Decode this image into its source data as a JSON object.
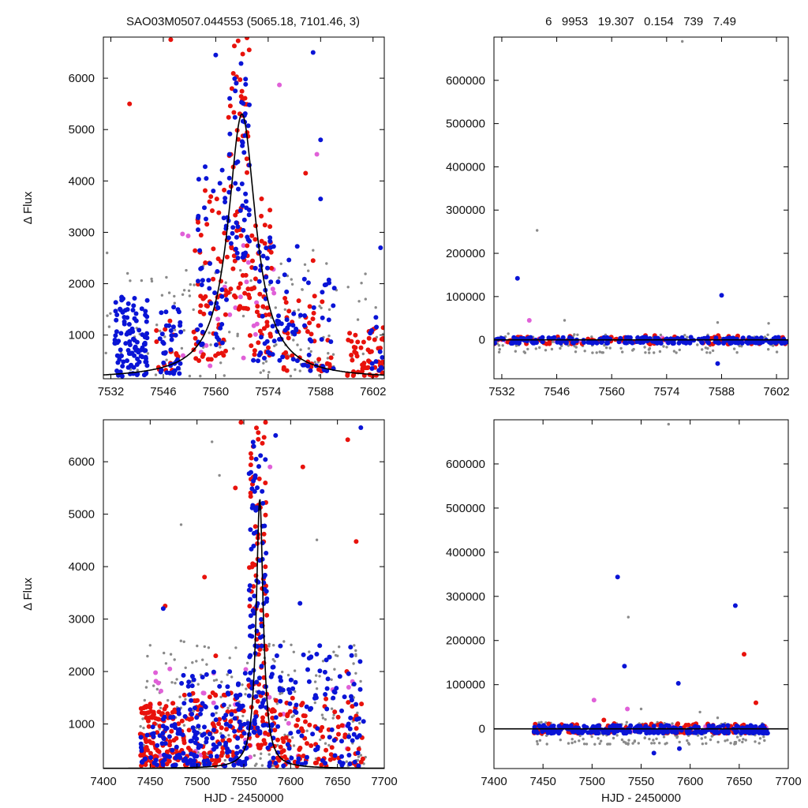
{
  "header": {
    "left_title": "SAO03M0507.044553 (5065.18, 7101.46,    3)",
    "right_stats": "6   9953   19.307   0.154   739   7.49"
  },
  "colors": {
    "red": "#e8120c",
    "blue": "#0a14d6",
    "magenta": "#e060d8",
    "gray": "#8a8a8a",
    "model": "#000000"
  },
  "chart_data": [
    {
      "panel": "top-left",
      "type": "scatter",
      "title": "",
      "xlabel": "",
      "ylabel": "Δ Flux",
      "xlim": [
        7530,
        7605
      ],
      "ylim": [
        150,
        6800
      ],
      "xticks": [
        7532,
        7546,
        7560,
        7574,
        7588,
        7602
      ],
      "yticks": [
        1000,
        2000,
        3000,
        4000,
        5000,
        6000
      ],
      "model": {
        "peak_x": 7567.0,
        "peak_y": 5300,
        "baseline": 150,
        "tau": 4.5
      },
      "series": [
        {
          "color": "red",
          "dense_groups": [
            {
              "x": [
                7532,
                7540
              ],
              "y": [
                300,
                1100
              ],
              "n": 0
            },
            {
              "x": [
                7544,
                7550
              ],
              "y": [
                300,
                1300
              ],
              "n": 15
            },
            {
              "x": [
                7554,
                7563
              ],
              "y": [
                500,
                4000
              ],
              "n": 60
            },
            {
              "x": [
                7563,
                7569
              ],
              "y": [
                1500,
                6800
              ],
              "n": 70
            },
            {
              "x": [
                7569,
                7575
              ],
              "y": [
                600,
                3800
              ],
              "n": 50
            },
            {
              "x": [
                7578,
                7592
              ],
              "y": [
                300,
                1900
              ],
              "n": 45
            },
            {
              "x": [
                7595,
                7605
              ],
              "y": [
                200,
                1200
              ],
              "n": 60
            }
          ],
          "outliers": [
            [
              7537,
              5500
            ],
            [
              7548,
              6750
            ],
            [
              7584,
              4150
            ],
            [
              7586,
              2450
            ]
          ]
        },
        {
          "color": "blue",
          "dense_groups": [
            {
              "x": [
                7533,
                7542
              ],
              "y": [
                200,
                1800
              ],
              "n": 110
            },
            {
              "x": [
                7545,
                7551
              ],
              "y": [
                250,
                1600
              ],
              "n": 40
            },
            {
              "x": [
                7555,
                7563
              ],
              "y": [
                800,
                4300
              ],
              "n": 50
            },
            {
              "x": [
                7563,
                7569
              ],
              "y": [
                2500,
                6500
              ],
              "n": 60
            },
            {
              "x": [
                7570,
                7582
              ],
              "y": [
                500,
                3200
              ],
              "n": 60
            },
            {
              "x": [
                7582,
                7592
              ],
              "y": [
                300,
                2100
              ],
              "n": 30
            },
            {
              "x": [
                7601,
                7605
              ],
              "y": [
                300,
                1400
              ],
              "n": 12
            }
          ],
          "outliers": [
            [
              7560,
              6450
            ],
            [
              7586,
              6500
            ],
            [
              7588,
              4800
            ],
            [
              7588,
              3650
            ],
            [
              7604,
              2700
            ]
          ]
        },
        {
          "color": "magenta",
          "dense_groups": [
            {
              "x": [
                7550,
                7576
              ],
              "y": [
                400,
                3000
              ],
              "n": 25
            }
          ],
          "outliers": [
            [
              7577,
              5870
            ],
            [
              7587,
              4520
            ]
          ]
        },
        {
          "color": "gray",
          "dense_groups": [
            {
              "x": [
                7530,
                7605
              ],
              "y": [
                200,
                2400
              ],
              "n": 140
            }
          ],
          "outliers": [
            [
              7531,
              2600
            ],
            [
              7586,
              2650
            ],
            [
              7600,
              1700
            ]
          ]
        }
      ]
    },
    {
      "panel": "top-right",
      "type": "scatter",
      "title": "",
      "xlabel": "",
      "ylabel": "",
      "xlim": [
        7530,
        7605
      ],
      "ylim": [
        -90000,
        700000
      ],
      "xticks": [
        7532,
        7546,
        7560,
        7574,
        7588,
        7602
      ],
      "yticks": [
        0,
        100000,
        200000,
        300000,
        400000,
        500000,
        600000
      ],
      "model": {
        "type": "flat",
        "y": 0
      },
      "series": [
        {
          "color": "blue",
          "dense_groups": [
            {
              "x": [
                7530,
                7605
              ],
              "y": [
                -8000,
                6000
              ],
              "n": 220
            }
          ],
          "outliers": [
            [
              7536,
              142000
            ],
            [
              7588,
              103000
            ],
            [
              7587,
              -55000
            ]
          ]
        },
        {
          "color": "red",
          "dense_groups": [
            {
              "x": [
                7530,
                7605
              ],
              "y": [
                -10000,
                10000
              ],
              "n": 90
            }
          ],
          "outliers": []
        },
        {
          "color": "magenta",
          "dense_groups": [
            {
              "x": [
                7530,
                7605
              ],
              "y": [
                -5000,
                5000
              ],
              "n": 20
            }
          ],
          "outliers": [
            [
              7539,
              45000
            ]
          ]
        },
        {
          "color": "gray",
          "dense_groups": [
            {
              "x": [
                7530,
                7605
              ],
              "y": [
                -30000,
                15000
              ],
              "n": 120
            }
          ],
          "outliers": [
            [
              7541,
              253000
            ],
            [
              7548,
              45000
            ],
            [
              7578,
              690000
            ],
            [
              7587,
              40000
            ],
            [
              7600,
              38000
            ]
          ]
        }
      ]
    },
    {
      "panel": "bottom-left",
      "type": "scatter",
      "title": "",
      "xlabel": "HJD - 2450000",
      "ylabel": "Δ Flux",
      "xlim": [
        7400,
        7700
      ],
      "ylim": [
        150,
        6800
      ],
      "xticks": [
        7400,
        7450,
        7500,
        7550,
        7600,
        7650,
        7700
      ],
      "yticks": [
        1000,
        2000,
        3000,
        4000,
        5000,
        6000
      ],
      "model": {
        "peak_x": 7567.0,
        "peak_y": 5300,
        "baseline": 150,
        "tau": 4.5
      },
      "series": [
        {
          "color": "red",
          "dense_groups": [
            {
              "x": [
                7438,
                7480
              ],
              "y": [
                200,
                1400
              ],
              "n": 120
            },
            {
              "x": [
                7480,
                7550
              ],
              "y": [
                200,
                1600
              ],
              "n": 110
            },
            {
              "x": [
                7555,
                7575
              ],
              "y": [
                500,
                6800
              ],
              "n": 90
            },
            {
              "x": [
                7575,
                7678
              ],
              "y": [
                200,
                1500
              ],
              "n": 110
            }
          ],
          "outliers": [
            [
              7466,
              3250
            ],
            [
              7508,
              3800
            ],
            [
              7541,
              5500
            ],
            [
              7547,
              6750
            ],
            [
              7613,
              5900
            ],
            [
              7661,
              6420
            ],
            [
              7670,
              4480
            ],
            [
              7660,
              2000
            ],
            [
              7520,
              2300
            ]
          ]
        },
        {
          "color": "blue",
          "dense_groups": [
            {
              "x": [
                7440,
                7480
              ],
              "y": [
                200,
                1200
              ],
              "n": 50
            },
            {
              "x": [
                7480,
                7555
              ],
              "y": [
                200,
                2000
              ],
              "n": 150
            },
            {
              "x": [
                7555,
                7575
              ],
              "y": [
                800,
                6500
              ],
              "n": 100
            },
            {
              "x": [
                7575,
                7678
              ],
              "y": [
                200,
                2500
              ],
              "n": 120
            }
          ],
          "outliers": [
            [
              7464,
              3200
            ],
            [
              7584,
              6500
            ],
            [
              7610,
              3300
            ],
            [
              7675,
              6650
            ]
          ]
        },
        {
          "color": "magenta",
          "dense_groups": [
            {
              "x": [
                7450,
                7678
              ],
              "y": [
                300,
                2200
              ],
              "n": 30
            }
          ],
          "outliers": [
            [
              7578,
              5900
            ],
            [
              7662,
              1700
            ]
          ]
        },
        {
          "color": "gray",
          "dense_groups": [
            {
              "x": [
                7438,
                7680
              ],
              "y": [
                200,
                2600
              ],
              "n": 220
            }
          ],
          "outliers": [
            [
              7483,
              4800
            ],
            [
              7516,
              6380
            ],
            [
              7524,
              5740
            ],
            [
              7628,
              4510
            ],
            [
              7450,
              2500
            ]
          ]
        }
      ]
    },
    {
      "panel": "bottom-right",
      "type": "scatter",
      "title": "",
      "xlabel": "HJD - 2450000",
      "ylabel": "",
      "xlim": [
        7400,
        7700
      ],
      "ylim": [
        -90000,
        700000
      ],
      "xticks": [
        7400,
        7450,
        7500,
        7550,
        7600,
        7650,
        7700
      ],
      "yticks": [
        0,
        100000,
        200000,
        300000,
        400000,
        500000,
        600000
      ],
      "model": {
        "type": "flat",
        "y": 0
      },
      "series": [
        {
          "color": "blue",
          "dense_groups": [
            {
              "x": [
                7440,
                7680
              ],
              "y": [
                -10000,
                8000
              ],
              "n": 280
            }
          ],
          "outliers": [
            [
              7526,
              344000
            ],
            [
              7533,
              142000
            ],
            [
              7588,
              103000
            ],
            [
              7646,
              279000
            ],
            [
              7563,
              -55000
            ],
            [
              7589,
              -45000
            ]
          ]
        },
        {
          "color": "red",
          "dense_groups": [
            {
              "x": [
                7440,
                7680
              ],
              "y": [
                -10000,
                12000
              ],
              "n": 120
            }
          ],
          "outliers": [
            [
              7655,
              169000
            ],
            [
              7667,
              59000
            ],
            [
              7512,
              20000
            ]
          ]
        },
        {
          "color": "magenta",
          "dense_groups": [
            {
              "x": [
                7440,
                7680
              ],
              "y": [
                -5000,
                8000
              ],
              "n": 20
            }
          ],
          "outliers": [
            [
              7502,
              65000
            ],
            [
              7536,
              45000
            ]
          ]
        },
        {
          "color": "gray",
          "dense_groups": [
            {
              "x": [
                7440,
                7680
              ],
              "y": [
                -35000,
                15000
              ],
              "n": 160
            }
          ],
          "outliers": [
            [
              7537,
              253000
            ],
            [
              7578,
              690000
            ],
            [
              7550,
              45000
            ],
            [
              7610,
              38000
            ],
            [
              7628,
              25000
            ]
          ]
        }
      ]
    }
  ]
}
